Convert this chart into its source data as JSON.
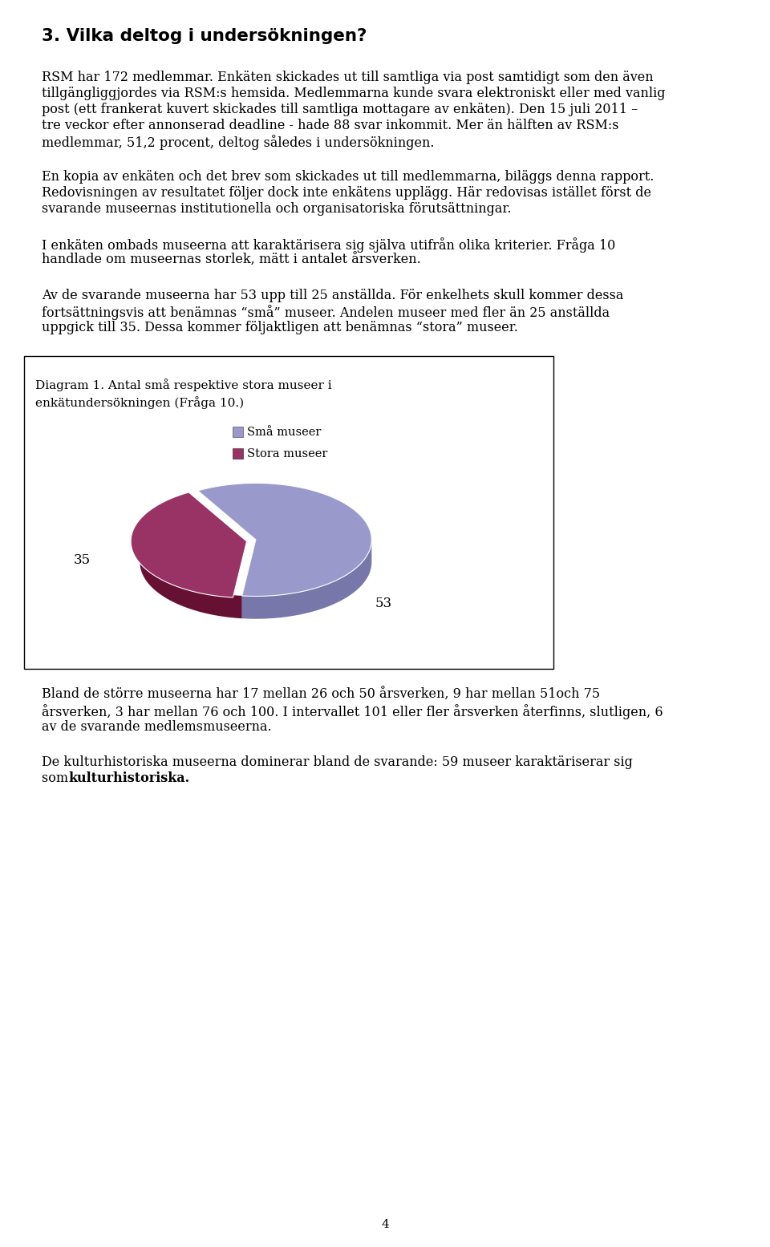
{
  "title": "3. Vilka deltog i undersökningen?",
  "p1_lines": [
    "RSM har 172 medlemmar. Enkäten skickades ut till samtliga via post samtidigt som den även",
    "tillgängliggjordes via RSM:s hemsida. Medlemmarna kunde svara elektroniskt eller med vanlig",
    "post (ett frankerat kuvert skickades till samtliga mottagare av enkäten). Den 15 juli 2011 –",
    "tre veckor efter annonserad deadline - hade 88 svar inkommit. Mer än hälften av RSM:s",
    "medlemmar, 51,2 procent, deltog således i undersökningen."
  ],
  "p2_lines": [
    "En kopia av enkäten och det brev som skickades ut till medlemmarna, biläggs denna rapport.",
    "Redovisningen av resultatet följer dock inte enkätens upplägg. Här redovisas istället först de",
    "svarande museernas institutionella och organisatoriska förutsättningar."
  ],
  "p3_lines": [
    "I enkäten ombads museerna att karaktärisera sig själva utifrån olika kriterier. Fråga 10",
    "handlade om museernas storlek, mätt i antalet årsverken."
  ],
  "p4_lines": [
    "Av de svarande museerna har 53 upp till 25 anställda. För enkelhets skull kommer dessa",
    "fortsättningsvis att benämnas “små” museer. Andelen museer med fler än 25 anställda",
    "uppgick till 35. Dessa kommer följaktligen att benämnas “stora” museer."
  ],
  "diag_line1": "Diagram 1. Antal små respektive stora museer i",
  "diag_line2": "enkätundersökningen (Fråga 10.)",
  "legend_small": "Små museer",
  "legend_large": "Stora museer",
  "pie_values": [
    53,
    35
  ],
  "color_small": "#9999cc",
  "color_large": "#993366",
  "color_small_side": "#7777aa",
  "color_large_side": "#661133",
  "p5_lines": [
    "Bland de större museerna har 17 mellan 26 och 50 årsverken, 9 har mellan 51och 75",
    "årsverken, 3 har mellan 76 och 100. I intervallet 101 eller fler årsverken återfinns, slutligen, 6",
    "av de svarande medlemsmuseerna."
  ],
  "p6_line1": "De kulturhistoriska museerna dominerar bland de svarande: 59 museer karaktäriserar sig",
  "p6_line2_normal": "som ",
  "p6_line2_bold": "kulturhistoriska.",
  "page_number": "4"
}
